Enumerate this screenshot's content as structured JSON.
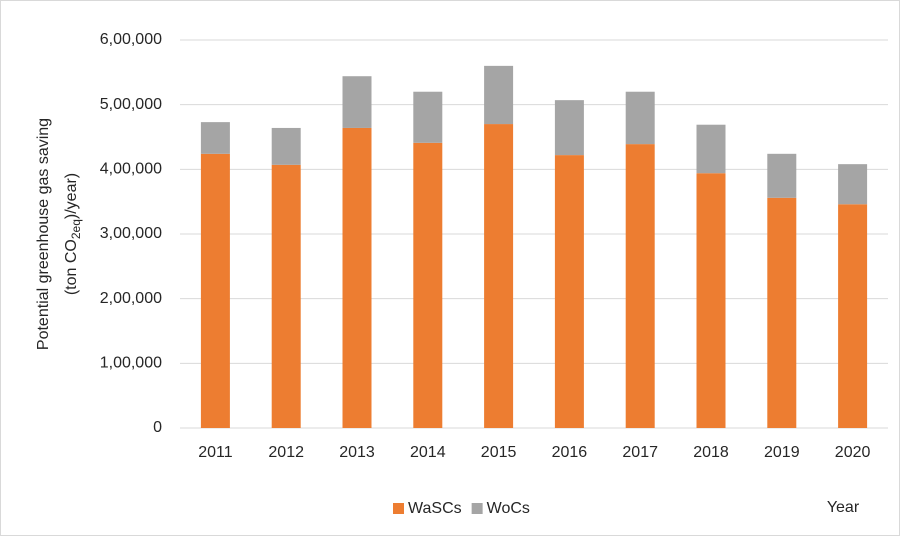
{
  "chart_data": {
    "type": "stacked_bar",
    "y_label": [
      "Potential greenhouse gas saving",
      "(ton CO",
      "2eq",
      ")/year)"
    ],
    "x_label": "Year",
    "categories": [
      "2011",
      "2012",
      "2013",
      "2014",
      "2015",
      "2016",
      "2017",
      "2018",
      "2019",
      "2020"
    ],
    "series": [
      {
        "name": "WaSCs",
        "color": "#ed7d31",
        "values": [
          424000,
          407000,
          464000,
          441000,
          470000,
          422000,
          439000,
          394000,
          356000,
          346000
        ]
      },
      {
        "name": "WoCs",
        "color": "#a5a5a5",
        "values": [
          49000,
          57000,
          80000,
          79000,
          90000,
          85000,
          81000,
          75000,
          68000,
          62000
        ]
      }
    ],
    "ylim": [
      0,
      600000
    ],
    "yticks": [
      0,
      {
        "value": 100000,
        "label": "1,00,000"
      },
      {
        "value": 200000,
        "label": "2,00,000"
      },
      {
        "value": 300000,
        "label": "3,00,000"
      },
      {
        "value": 400000,
        "label": "4,00,000"
      },
      {
        "value": 500000,
        "label": "5,00,000"
      },
      {
        "value": 600000,
        "label": "6,00,000"
      }
    ],
    "grid": true,
    "legend": "bottom"
  }
}
